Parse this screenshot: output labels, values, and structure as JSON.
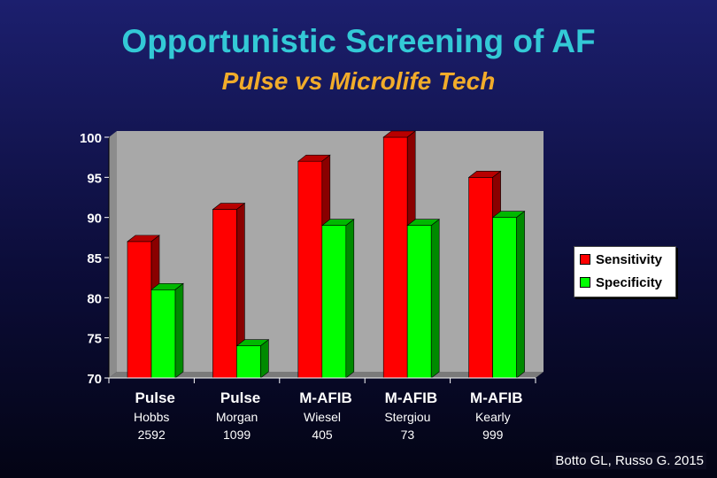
{
  "title": "Opportunistic Screening of AF",
  "subtitle": "Pulse vs Microlife Tech",
  "citation": "Botto GL, Russo G. 2015",
  "colors": {
    "sensitivity": "#ff0000",
    "specificity": "#00ff00"
  },
  "chart_data": {
    "type": "bar",
    "categories": [
      "Pulse",
      "Pulse",
      "M-AFIB",
      "M-AFIB",
      "M-AFIB"
    ],
    "category_sublabels": [
      [
        "Hobbs",
        "2592"
      ],
      [
        "Morgan",
        "1099"
      ],
      [
        "Wiesel",
        "405"
      ],
      [
        "Stergiou",
        "73"
      ],
      [
        "Kearly",
        "999"
      ]
    ],
    "series": [
      {
        "name": "Sensitivity",
        "values": [
          87,
          91,
          97,
          100,
          95
        ]
      },
      {
        "name": "Specificity",
        "values": [
          81,
          74,
          89,
          89,
          90
        ]
      }
    ],
    "y_ticks": [
      "70",
      "75",
      "80",
      "85",
      "90",
      "95",
      "100"
    ],
    "ylim": [
      70,
      100
    ],
    "xlabel": "",
    "ylabel": "",
    "grid": false,
    "legend": "right"
  }
}
